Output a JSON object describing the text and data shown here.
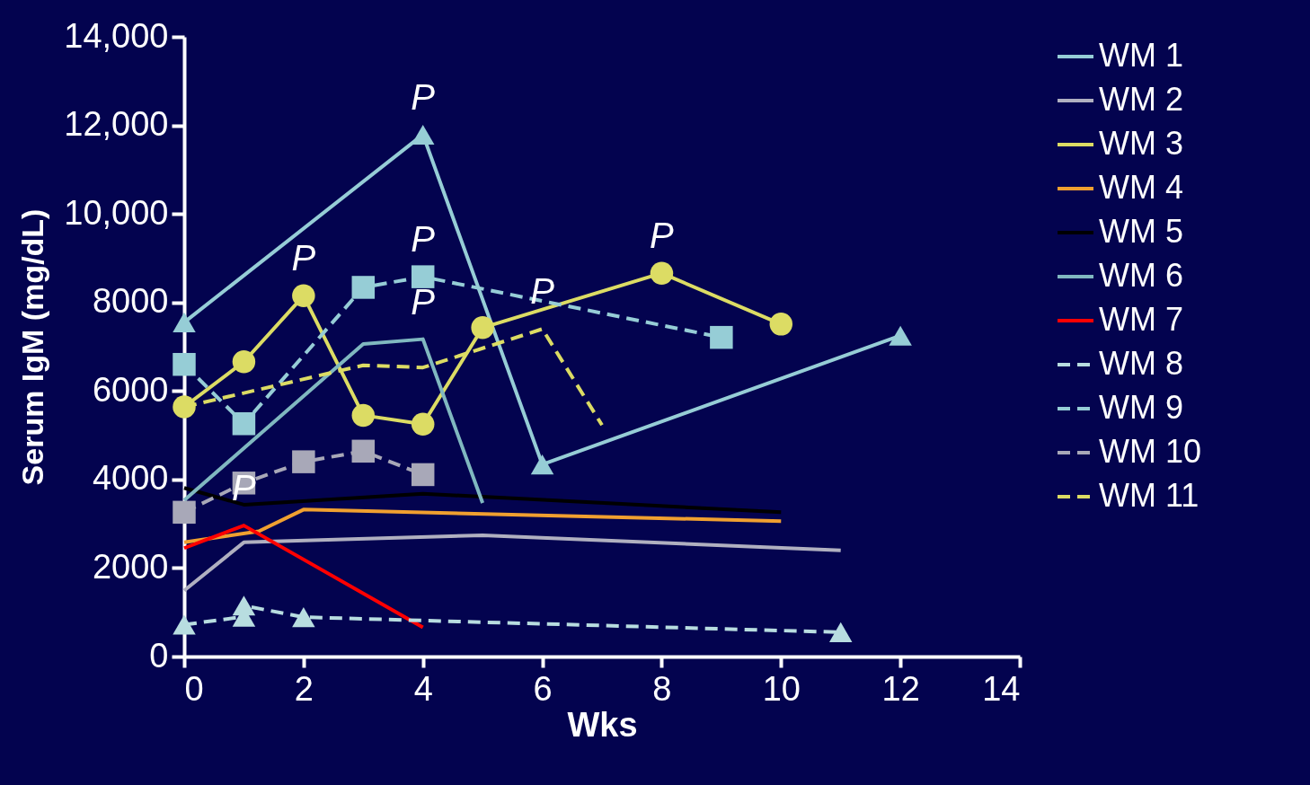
{
  "chart_data": {
    "type": "line",
    "xlabel": "Wks",
    "ylabel": "Serum IgM (mg/dL)",
    "xlim": [
      0,
      14
    ],
    "xticks": [
      0,
      2,
      4,
      6,
      8,
      10,
      12,
      14
    ],
    "ylim": [
      0,
      14000
    ],
    "yticks": [
      0,
      2000,
      4000,
      6000,
      8000,
      {
        "value": 10000,
        "label": "10,000"
      },
      {
        "value": 12000,
        "label": "12,000"
      },
      {
        "value": 14000,
        "label": "14,000"
      }
    ],
    "grid": false,
    "legend": "right",
    "series": [
      {
        "name": "WM 1",
        "color": "#96cdd6",
        "marker": "triangle",
        "line_style": "solid",
        "x": [
          0,
          4,
          6,
          12
        ],
        "values": [
          7550,
          11790,
          4340,
          7250
        ]
      },
      {
        "name": "WM 2",
        "color": "#b0b0c0",
        "marker": "none",
        "line_style": "solid",
        "x": [
          0,
          1,
          5,
          11
        ],
        "values": [
          1490,
          2580,
          2740,
          2400
        ]
      },
      {
        "name": "WM 3",
        "color": "#dcdc64",
        "marker": "circle",
        "line_style": "solid",
        "x": [
          0,
          1,
          2,
          3,
          4,
          5,
          8,
          10
        ],
        "values": [
          5640,
          6660,
          8150,
          5450,
          5250,
          7430,
          8660,
          7510
        ]
      },
      {
        "name": "WM 4",
        "color": "#f0a030",
        "marker": "none",
        "line_style": "solid",
        "x": [
          0,
          1.25,
          2,
          10
        ],
        "values": [
          2580,
          2830,
          3320,
          3060
        ]
      },
      {
        "name": "WM 5",
        "color": "#000000",
        "marker": "none",
        "line_style": "solid",
        "x": [
          0,
          1,
          4,
          10
        ],
        "values": [
          3810,
          3430,
          3680,
          3260
        ]
      },
      {
        "name": "WM 6",
        "color": "#80b8c0",
        "marker": "none",
        "line_style": "solid",
        "x": [
          0,
          3,
          4,
          5
        ],
        "values": [
          3530,
          7060,
          7170,
          3470
        ]
      },
      {
        "name": "WM 7",
        "color": "#ff0000",
        "marker": "none",
        "line_style": "solid",
        "x": [
          0,
          1,
          4
        ],
        "values": [
          2450,
          2960,
          660
        ]
      },
      {
        "name": "WM 8",
        "color": "#b8dde0",
        "marker": "triangle",
        "line_style": "dashed",
        "x": [
          0,
          1,
          1,
          2,
          11
        ],
        "values": [
          720,
          900,
          1150,
          890,
          550
        ]
      },
      {
        "name": "WM 9",
        "color": "#96cdd6",
        "marker": "square",
        "line_style": "dashed",
        "x": [
          0,
          1,
          3,
          4,
          9
        ],
        "values": [
          6600,
          5260,
          8340,
          8580,
          7210
        ]
      },
      {
        "name": "WM 10",
        "color": "#a8a8b8",
        "marker": "square",
        "line_style": "dashed",
        "x": [
          0,
          1,
          2,
          3,
          4
        ],
        "values": [
          3260,
          3920,
          4400,
          4640,
          4110
        ]
      },
      {
        "name": "WM 11",
        "color": "#dcdc64",
        "marker": "none",
        "line_style": "dashed",
        "x": [
          0,
          3,
          4,
          6,
          7
        ],
        "values": [
          5640,
          6580,
          6530,
          7400,
          5230
        ]
      }
    ],
    "annotations": [
      {
        "text": "P",
        "x": 4,
        "y": 11790
      },
      {
        "text": "P",
        "x": 2,
        "y": 8150
      },
      {
        "text": "P",
        "x": 4,
        "y": 8580
      },
      {
        "text": "P",
        "x": 4,
        "y": 7170
      },
      {
        "text": "P",
        "x": 6,
        "y": 7400
      },
      {
        "text": "P",
        "x": 8,
        "y": 8660
      },
      {
        "text": "P",
        "x": 1,
        "y": 2960
      }
    ]
  }
}
